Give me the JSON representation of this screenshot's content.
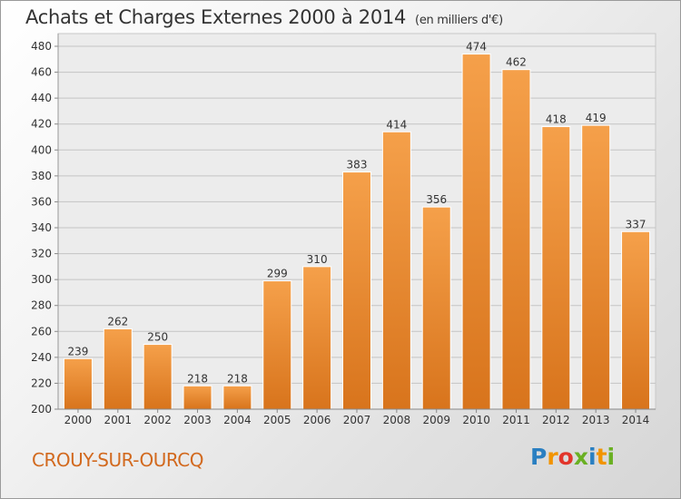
{
  "title": "Achats et Charges Externes 2000 à 2014",
  "subtitle": "(en milliers d'€)",
  "commune": "CROUY-SUR-OURCQ",
  "logo": {
    "letters": [
      "P",
      "r",
      "o",
      "x",
      "i",
      "t",
      "i"
    ],
    "colors": [
      "#2a7fc1",
      "#f29400",
      "#e2352b",
      "#6ab023",
      "#2a7fc1",
      "#f29400",
      "#6ab023"
    ]
  },
  "colors": {
    "bar_top": "#f5a04a",
    "bar_bottom": "#d8741c"
  },
  "chart_data": {
    "type": "bar",
    "categories": [
      "2000",
      "2001",
      "2002",
      "2003",
      "2004",
      "2005",
      "2006",
      "2007",
      "2008",
      "2009",
      "2010",
      "2011",
      "2012",
      "2013",
      "2014"
    ],
    "values": [
      239,
      262,
      250,
      218,
      218,
      299,
      310,
      383,
      414,
      356,
      474,
      462,
      418,
      419,
      337
    ],
    "ylim": [
      200,
      480
    ],
    "yticks": [
      200,
      220,
      240,
      260,
      280,
      300,
      320,
      340,
      360,
      380,
      400,
      420,
      440,
      460,
      480
    ],
    "grid": true
  }
}
